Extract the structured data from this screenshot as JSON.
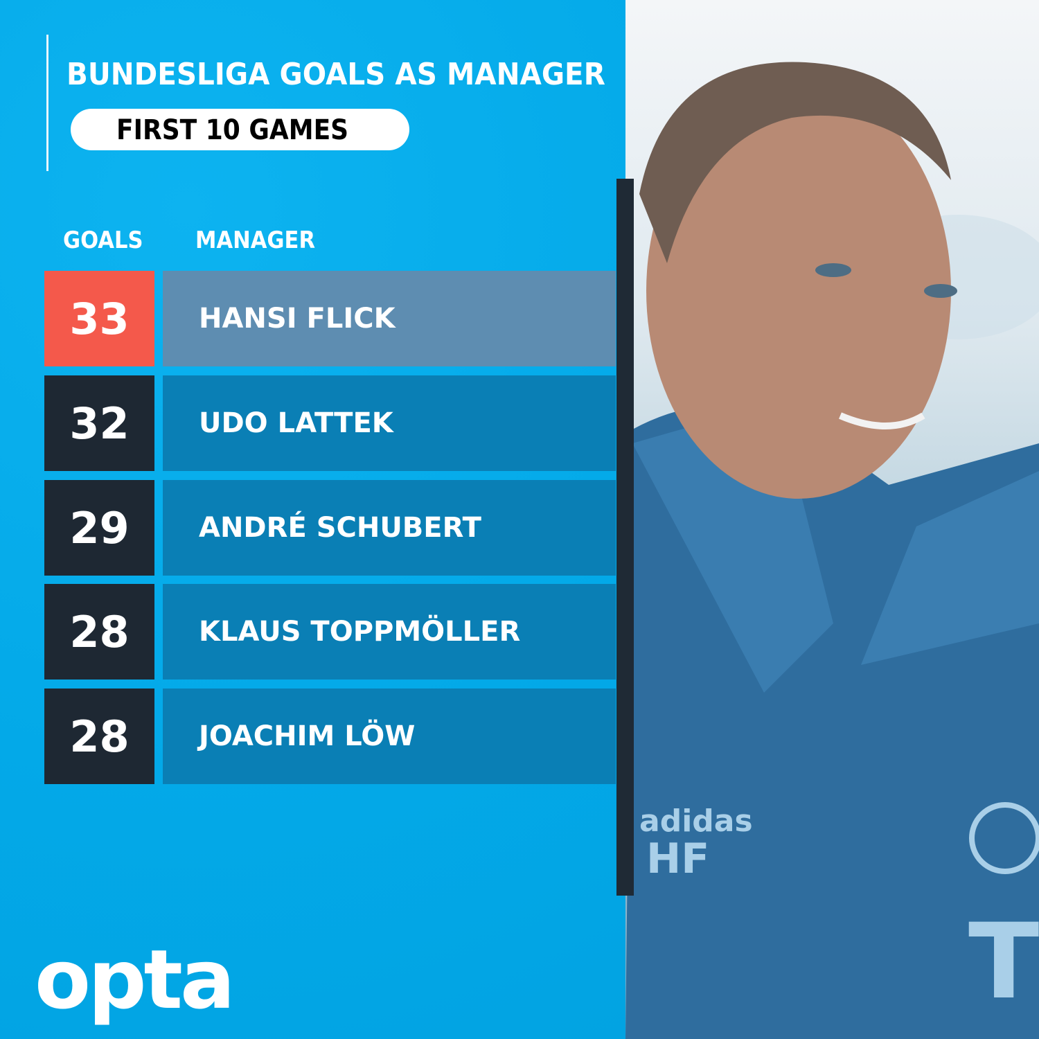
{
  "title": "BUNDESLIGA GOALS AS MANAGER",
  "subtitle": "FIRST 10 GAMES",
  "logo_text": "opta",
  "colors": {
    "background": "#03a9e8",
    "highlight_goals": "#f4594b",
    "highlight_name": "#5e8db1",
    "goals_box": "#1e2833",
    "name_box": "#0a7fb5"
  },
  "photo": {
    "jacket_text": "HF",
    "jacket_brand": "adidas"
  },
  "chart_data": {
    "type": "table",
    "title": "BUNDESLIGA GOALS AS MANAGER",
    "subtitle": "FIRST 10 GAMES",
    "columns": [
      "GOALS",
      "MANAGER"
    ],
    "rows": [
      {
        "goals": 33,
        "manager": "HANSI FLICK",
        "highlight": true
      },
      {
        "goals": 32,
        "manager": "UDO LATTEK",
        "highlight": false
      },
      {
        "goals": 29,
        "manager": "ANDRÉ SCHUBERT",
        "highlight": false
      },
      {
        "goals": 28,
        "manager": "KLAUS TOPPMÖLLER",
        "highlight": false
      },
      {
        "goals": 28,
        "manager": "JOACHIM LÖW",
        "highlight": false
      }
    ]
  }
}
